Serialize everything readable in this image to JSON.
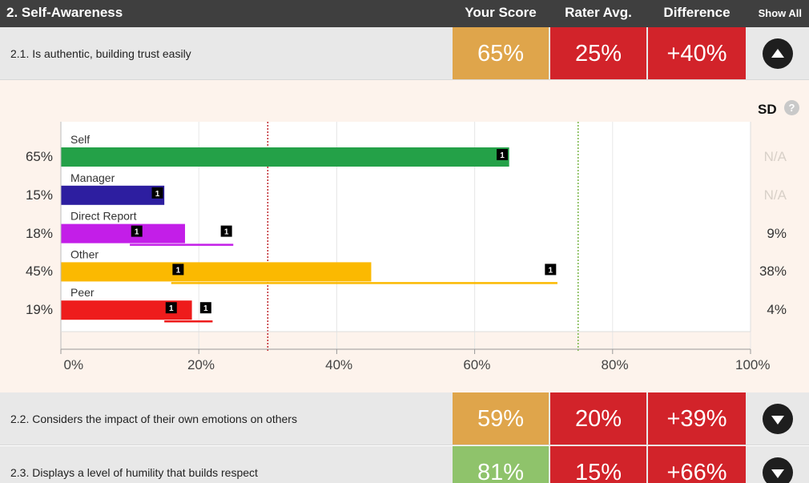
{
  "header": {
    "title": "2. Self-Awareness",
    "col_your_score": "Your Score",
    "col_rater_avg": "Rater Avg.",
    "col_difference": "Difference",
    "show_all": "Show All"
  },
  "items": [
    {
      "label": "2.1. Is authentic, building trust easily",
      "your_score": "65%",
      "rater_avg": "25%",
      "difference": "+40%",
      "score_color": "#dfa54b",
      "expanded": true
    },
    {
      "label": "2.2. Considers the impact of their own emotions on others",
      "your_score": "59%",
      "rater_avg": "20%",
      "difference": "+39%",
      "score_color": "#dfa54b",
      "expanded": false
    },
    {
      "label": "2.3. Displays a level of humility that builds respect",
      "your_score": "81%",
      "rater_avg": "15%",
      "difference": "+66%",
      "score_color": "#8fc36b",
      "expanded": false
    }
  ],
  "colors": {
    "rater_cell": "#d2232a",
    "difference_cell": "#d2232a",
    "panel_bg": "#fdf3ec"
  },
  "sd_label": "SD",
  "chart_data": {
    "type": "bar",
    "orientation": "horizontal",
    "xlim": [
      0,
      100
    ],
    "x_ticks": [
      "0%",
      "20%",
      "40%",
      "60%",
      "80%",
      "100%"
    ],
    "reference_lines": [
      {
        "value": 30,
        "color": "#c0282e",
        "style": "dotted"
      },
      {
        "value": 75,
        "color": "#7ab648",
        "style": "dotted"
      }
    ],
    "series": [
      {
        "name": "Self",
        "value": 65,
        "value_label": "65%",
        "color": "#24a148",
        "count_markers": [
          {
            "value": 64,
            "count": "1"
          }
        ],
        "range": null,
        "sd": "N/A"
      },
      {
        "name": "Manager",
        "value": 15,
        "value_label": "15%",
        "color": "#2d1ea0",
        "count_markers": [
          {
            "value": 14,
            "count": "1"
          }
        ],
        "range": null,
        "sd": "N/A"
      },
      {
        "name": "Direct Report",
        "value": 18,
        "value_label": "18%",
        "color": "#c31ee8",
        "count_markers": [
          {
            "value": 11,
            "count": "1"
          },
          {
            "value": 24,
            "count": "1"
          }
        ],
        "range": [
          10,
          25
        ],
        "sd": "9%"
      },
      {
        "name": "Other",
        "value": 45,
        "value_label": "45%",
        "color": "#fbb901",
        "count_markers": [
          {
            "value": 17,
            "count": "1"
          },
          {
            "value": 71,
            "count": "1"
          }
        ],
        "range": [
          16,
          72
        ],
        "sd": "38%"
      },
      {
        "name": "Peer",
        "value": 19,
        "value_label": "19%",
        "color": "#ee1c1c",
        "count_markers": [
          {
            "value": 16,
            "count": "1"
          },
          {
            "value": 21,
            "count": "1"
          }
        ],
        "range": [
          15,
          22
        ],
        "sd": "4%"
      }
    ]
  }
}
